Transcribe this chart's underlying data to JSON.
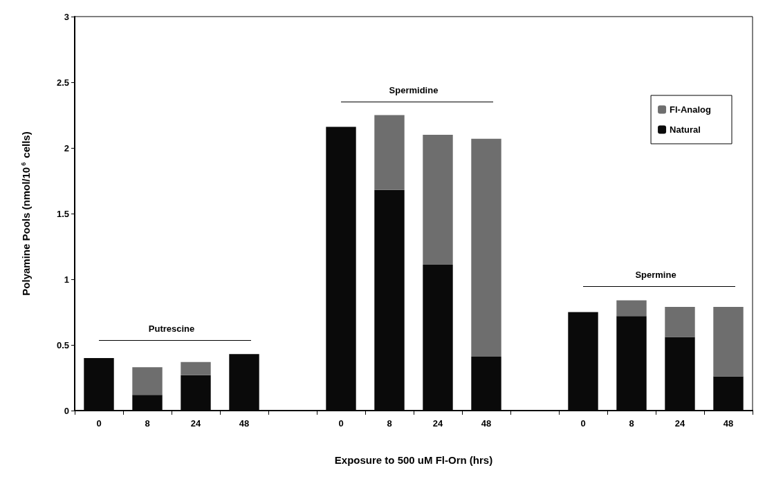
{
  "chart_data": {
    "type": "bar",
    "stacked": true,
    "xlabel": "Exposure to 500 uM Fl-Orn (hrs)",
    "ylabel": "Polyamine Pools (nmol/10$^{6}$ cells)",
    "categories": [
      "0",
      "8",
      "24",
      "48",
      null,
      "0",
      "8",
      "24",
      "48",
      null,
      "0",
      "8",
      "24",
      "48"
    ],
    "series": [
      {
        "name": "Natural",
        "color": "#0a0a0a",
        "values": [
          0.4,
          0.12,
          0.27,
          0.43,
          null,
          2.16,
          1.68,
          1.11,
          0.41,
          null,
          0.75,
          0.72,
          0.56,
          0.26
        ]
      },
      {
        "name": "Fl-Analog",
        "color": "#6e6e6e",
        "values": [
          0,
          0.21,
          0.1,
          0,
          null,
          0,
          0.57,
          0.99,
          1.66,
          null,
          0,
          0.12,
          0.23,
          0.53
        ]
      }
    ],
    "annotations": [
      "Putrescine",
      "Spermidine",
      "Spermine"
    ],
    "ylim": [
      0,
      3
    ],
    "yticks": [
      0,
      0.5,
      1,
      1.5,
      2,
      2.5,
      3
    ],
    "grid": false,
    "legend": "top right"
  }
}
